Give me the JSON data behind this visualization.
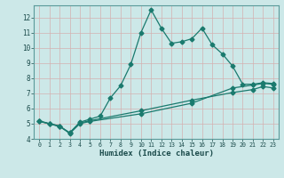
{
  "xlabel": "Humidex (Indice chaleur)",
  "bg_color": "#cce8e8",
  "line_color": "#1a7a6e",
  "grid_color": "#b0d4d4",
  "xlim": [
    -0.5,
    23.5
  ],
  "ylim": [
    4,
    12.8
  ],
  "xticks": [
    0,
    1,
    2,
    3,
    4,
    5,
    6,
    7,
    8,
    9,
    10,
    11,
    12,
    13,
    14,
    15,
    16,
    17,
    18,
    19,
    20,
    21,
    22,
    23
  ],
  "yticks": [
    4,
    5,
    6,
    7,
    8,
    9,
    10,
    11,
    12
  ],
  "line1_x": [
    0,
    1,
    2,
    3,
    4,
    5,
    6,
    7,
    8,
    9,
    10,
    11,
    12,
    13,
    14,
    15,
    16,
    17,
    18,
    19,
    20,
    21,
    22,
    23
  ],
  "line1_y": [
    5.2,
    5.0,
    4.8,
    4.4,
    5.1,
    5.3,
    5.5,
    6.7,
    7.5,
    8.9,
    11.0,
    12.5,
    11.3,
    10.3,
    10.4,
    10.6,
    11.3,
    10.2,
    9.6,
    8.8,
    7.6,
    7.6,
    7.7,
    7.65
  ],
  "line2_x": [
    0,
    1,
    2,
    3,
    4,
    5,
    10,
    15,
    19,
    21,
    22,
    23
  ],
  "line2_y": [
    5.15,
    5.0,
    4.85,
    4.35,
    5.0,
    5.15,
    5.65,
    6.35,
    7.35,
    7.55,
    7.65,
    7.6
  ],
  "line3_x": [
    0,
    1,
    2,
    3,
    4,
    5,
    10,
    15,
    19,
    21,
    22,
    23
  ],
  "line3_y": [
    5.15,
    5.0,
    4.85,
    4.4,
    5.05,
    5.2,
    5.85,
    6.55,
    7.05,
    7.25,
    7.45,
    7.35
  ]
}
